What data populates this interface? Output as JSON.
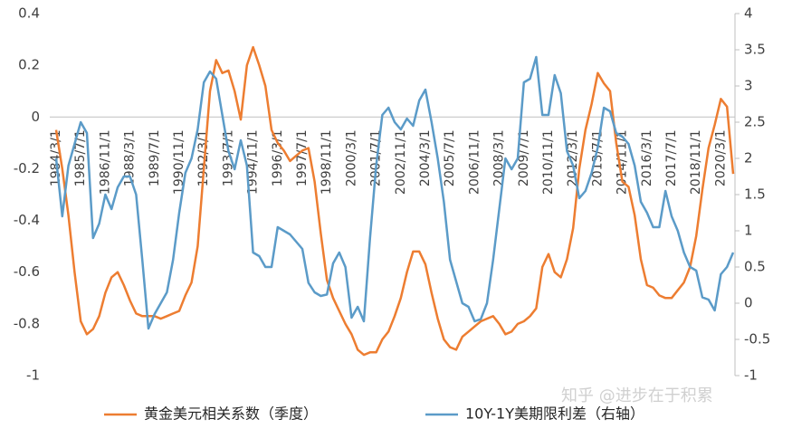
{
  "chart_data": {
    "type": "line",
    "categories": [
      "1984/3/1",
      null,
      null,
      null,
      "1985/7/1",
      null,
      null,
      null,
      "1986/11/1",
      null,
      null,
      null,
      "1988/3/1",
      null,
      null,
      null,
      "1989/7/1",
      null,
      null,
      null,
      "1990/11/1",
      null,
      null,
      null,
      "1992/3/1",
      null,
      null,
      null,
      "1993/7/1",
      null,
      null,
      null,
      "1994/11/1",
      null,
      null,
      null,
      "1996/3/1",
      null,
      null,
      null,
      "1997/7/1",
      null,
      null,
      null,
      "1998/11/1",
      null,
      null,
      null,
      "2000/3/1",
      null,
      null,
      null,
      "2001/7/1",
      null,
      null,
      null,
      "2002/11/1",
      null,
      null,
      null,
      "2004/3/1",
      null,
      null,
      null,
      "2005/7/1",
      null,
      null,
      null,
      "2006/11/1",
      null,
      null,
      null,
      "2008/3/1",
      null,
      null,
      null,
      "2009/7/1",
      null,
      null,
      null,
      "2010/11/1",
      null,
      null,
      null,
      "2012/3/1",
      null,
      null,
      null,
      "2013/7/1",
      null,
      null,
      null,
      "2014/11/1",
      null,
      null,
      null,
      "2016/3/1",
      null,
      null,
      null,
      "2017/7/1",
      null,
      null,
      null,
      "2018/11/1",
      null,
      null,
      null,
      "2020/3/1",
      null,
      null
    ],
    "series": [
      {
        "name": "黄金美元相关系数（季度）",
        "color": "#ed7d31",
        "axis": "y",
        "values": [
          -0.05,
          -0.2,
          -0.38,
          -0.6,
          -0.79,
          -0.84,
          -0.82,
          -0.77,
          -0.68,
          -0.62,
          -0.6,
          -0.65,
          -0.71,
          -0.76,
          -0.77,
          -0.77,
          -0.77,
          -0.78,
          -0.77,
          -0.76,
          -0.75,
          -0.69,
          -0.64,
          -0.5,
          -0.2,
          0.1,
          0.22,
          0.17,
          0.18,
          0.1,
          -0.01,
          0.2,
          0.27,
          0.2,
          0.12,
          -0.05,
          -0.1,
          -0.13,
          -0.17,
          -0.15,
          -0.13,
          -0.12,
          -0.25,
          -0.45,
          -0.63,
          -0.7,
          -0.75,
          -0.8,
          -0.84,
          -0.9,
          -0.92,
          -0.91,
          -0.91,
          -0.86,
          -0.83,
          -0.77,
          -0.7,
          -0.6,
          -0.52,
          -0.52,
          -0.57,
          -0.68,
          -0.78,
          -0.86,
          -0.89,
          -0.9,
          -0.85,
          -0.83,
          -0.81,
          -0.79,
          -0.78,
          -0.77,
          -0.8,
          -0.84,
          -0.83,
          -0.8,
          -0.79,
          -0.77,
          -0.74,
          -0.58,
          -0.53,
          -0.6,
          -0.62,
          -0.55,
          -0.43,
          -0.2,
          -0.05,
          0.05,
          0.17,
          0.13,
          0.1,
          -0.1,
          -0.25,
          -0.27,
          -0.38,
          -0.55,
          -0.65,
          -0.66,
          -0.69,
          -0.7,
          -0.7,
          -0.67,
          -0.64,
          -0.58,
          -0.46,
          -0.28,
          -0.12,
          -0.03,
          0.07,
          0.04,
          -0.22
        ]
      },
      {
        "name": "10Y-1Y美期限利差（右轴）",
        "color": "#5b9bc8",
        "axis": "y2",
        "values": [
          2.0,
          1.2,
          1.9,
          2.2,
          2.5,
          2.35,
          0.9,
          1.1,
          1.5,
          1.3,
          1.6,
          1.75,
          1.75,
          1.5,
          0.6,
          -0.35,
          -0.15,
          0.0,
          0.15,
          0.6,
          1.25,
          1.8,
          2.0,
          2.4,
          3.05,
          3.2,
          3.1,
          2.6,
          2.1,
          1.85,
          2.25,
          1.9,
          0.7,
          0.65,
          0.5,
          0.5,
          1.05,
          1.0,
          0.95,
          0.85,
          0.75,
          0.28,
          0.15,
          0.1,
          0.12,
          0.55,
          0.7,
          0.5,
          -0.2,
          -0.05,
          -0.25,
          0.9,
          1.9,
          2.6,
          2.7,
          2.5,
          2.4,
          2.55,
          2.45,
          2.8,
          2.95,
          2.5,
          2.0,
          1.4,
          0.6,
          0.3,
          0.0,
          -0.05,
          -0.25,
          -0.22,
          0.0,
          0.6,
          1.3,
          2.0,
          1.85,
          2.0,
          3.05,
          3.1,
          3.4,
          2.6,
          2.6,
          3.15,
          2.9,
          2.1,
          1.9,
          1.45,
          1.55,
          1.8,
          2.15,
          2.7,
          2.65,
          2.35,
          2.3,
          2.2,
          1.9,
          1.4,
          1.25,
          1.05,
          1.05,
          1.55,
          1.2,
          1.0,
          0.7,
          0.5,
          0.45,
          0.08,
          0.05,
          -0.1,
          0.4,
          0.5,
          0.7
        ]
      }
    ],
    "ylim": [
      -1,
      0.4
    ],
    "yticks": [
      0.4,
      0.2,
      0,
      -0.2,
      -0.4,
      -0.6,
      -0.8,
      -1
    ],
    "y2lim": [
      -1,
      4
    ],
    "y2ticks": [
      4,
      3.5,
      3,
      2.5,
      2,
      1.5,
      1,
      0.5,
      0,
      -0.5,
      -1
    ],
    "legend": "bottom"
  },
  "watermark": "知乎 @进步在于积累"
}
